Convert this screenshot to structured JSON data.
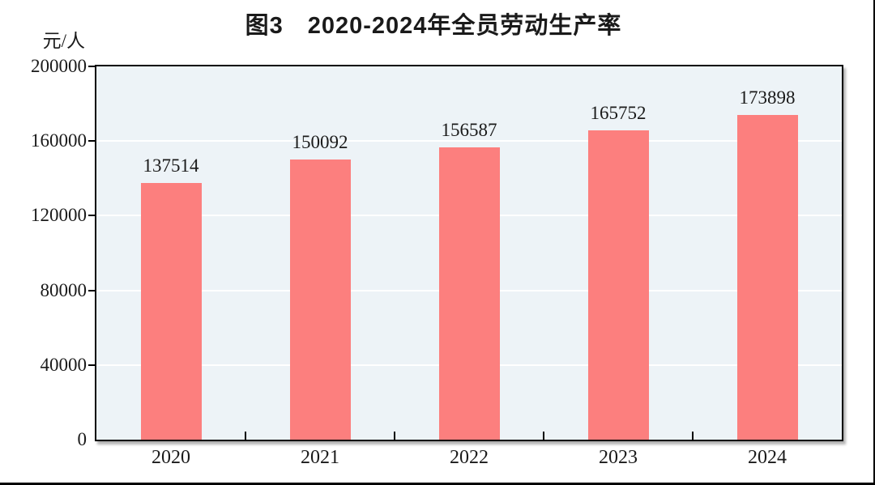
{
  "figure": {
    "title": "图3　2020-2024年全员劳动生产率",
    "unit_label": "元/人"
  },
  "chart_data": {
    "type": "bar",
    "title": "图3　2020-2024年全员劳动生产率",
    "xlabel": "",
    "ylabel": "元/人",
    "categories": [
      "2020",
      "2021",
      "2022",
      "2023",
      "2024"
    ],
    "values": [
      137514,
      150092,
      156587,
      165752,
      173898
    ],
    "data_labels": [
      "137514",
      "150092",
      "156587",
      "165752",
      "173898"
    ],
    "ylim": [
      0,
      200000
    ],
    "yticks": [
      0,
      40000,
      80000,
      120000,
      160000,
      200000
    ],
    "ytick_labels": [
      "0",
      "40000",
      "80000",
      "120000",
      "160000",
      "200000"
    ],
    "grid": "horizontal white gridlines at each y tick",
    "legend": "none",
    "colors": {
      "bar": "#FC7F7E",
      "plot_background": "#EDF3F7",
      "frame": "#000000",
      "gridline": "#FFFFFF",
      "text": "#1A1A1A"
    }
  }
}
